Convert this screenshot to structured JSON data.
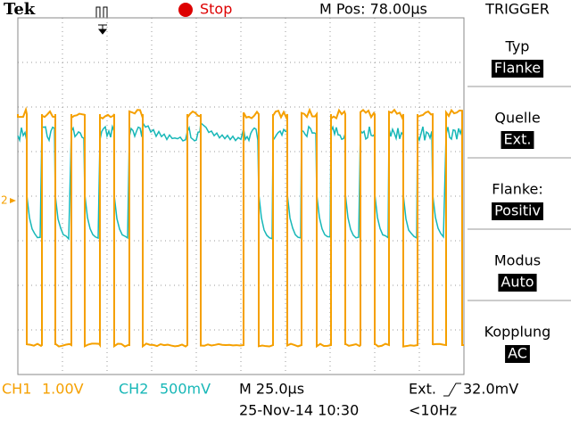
{
  "header": {
    "brand": "Tek",
    "state": "Stop",
    "position": "M Pos: 78.00µs",
    "menu_title": "TRIGGER"
  },
  "menu": [
    {
      "label": "Typ",
      "value": "Flanke"
    },
    {
      "label": "Quelle",
      "value": "Ext."
    },
    {
      "label": "Flanke:",
      "value": "Positiv"
    },
    {
      "label": "Modus",
      "value": "Auto"
    },
    {
      "label": "Kopplung",
      "value": "AC"
    }
  ],
  "channel_marker": "2",
  "footer": {
    "ch1": "CH1",
    "ch1_scale": "1.00V",
    "ch2": "CH2",
    "ch2_scale": "500mV",
    "timebase": "M 25.0µs",
    "date": "25-Nov-14 10:30",
    "trigger_source": "Ext.",
    "trigger_level": "32.0mV",
    "trigger_freq": "<10Hz"
  }
}
